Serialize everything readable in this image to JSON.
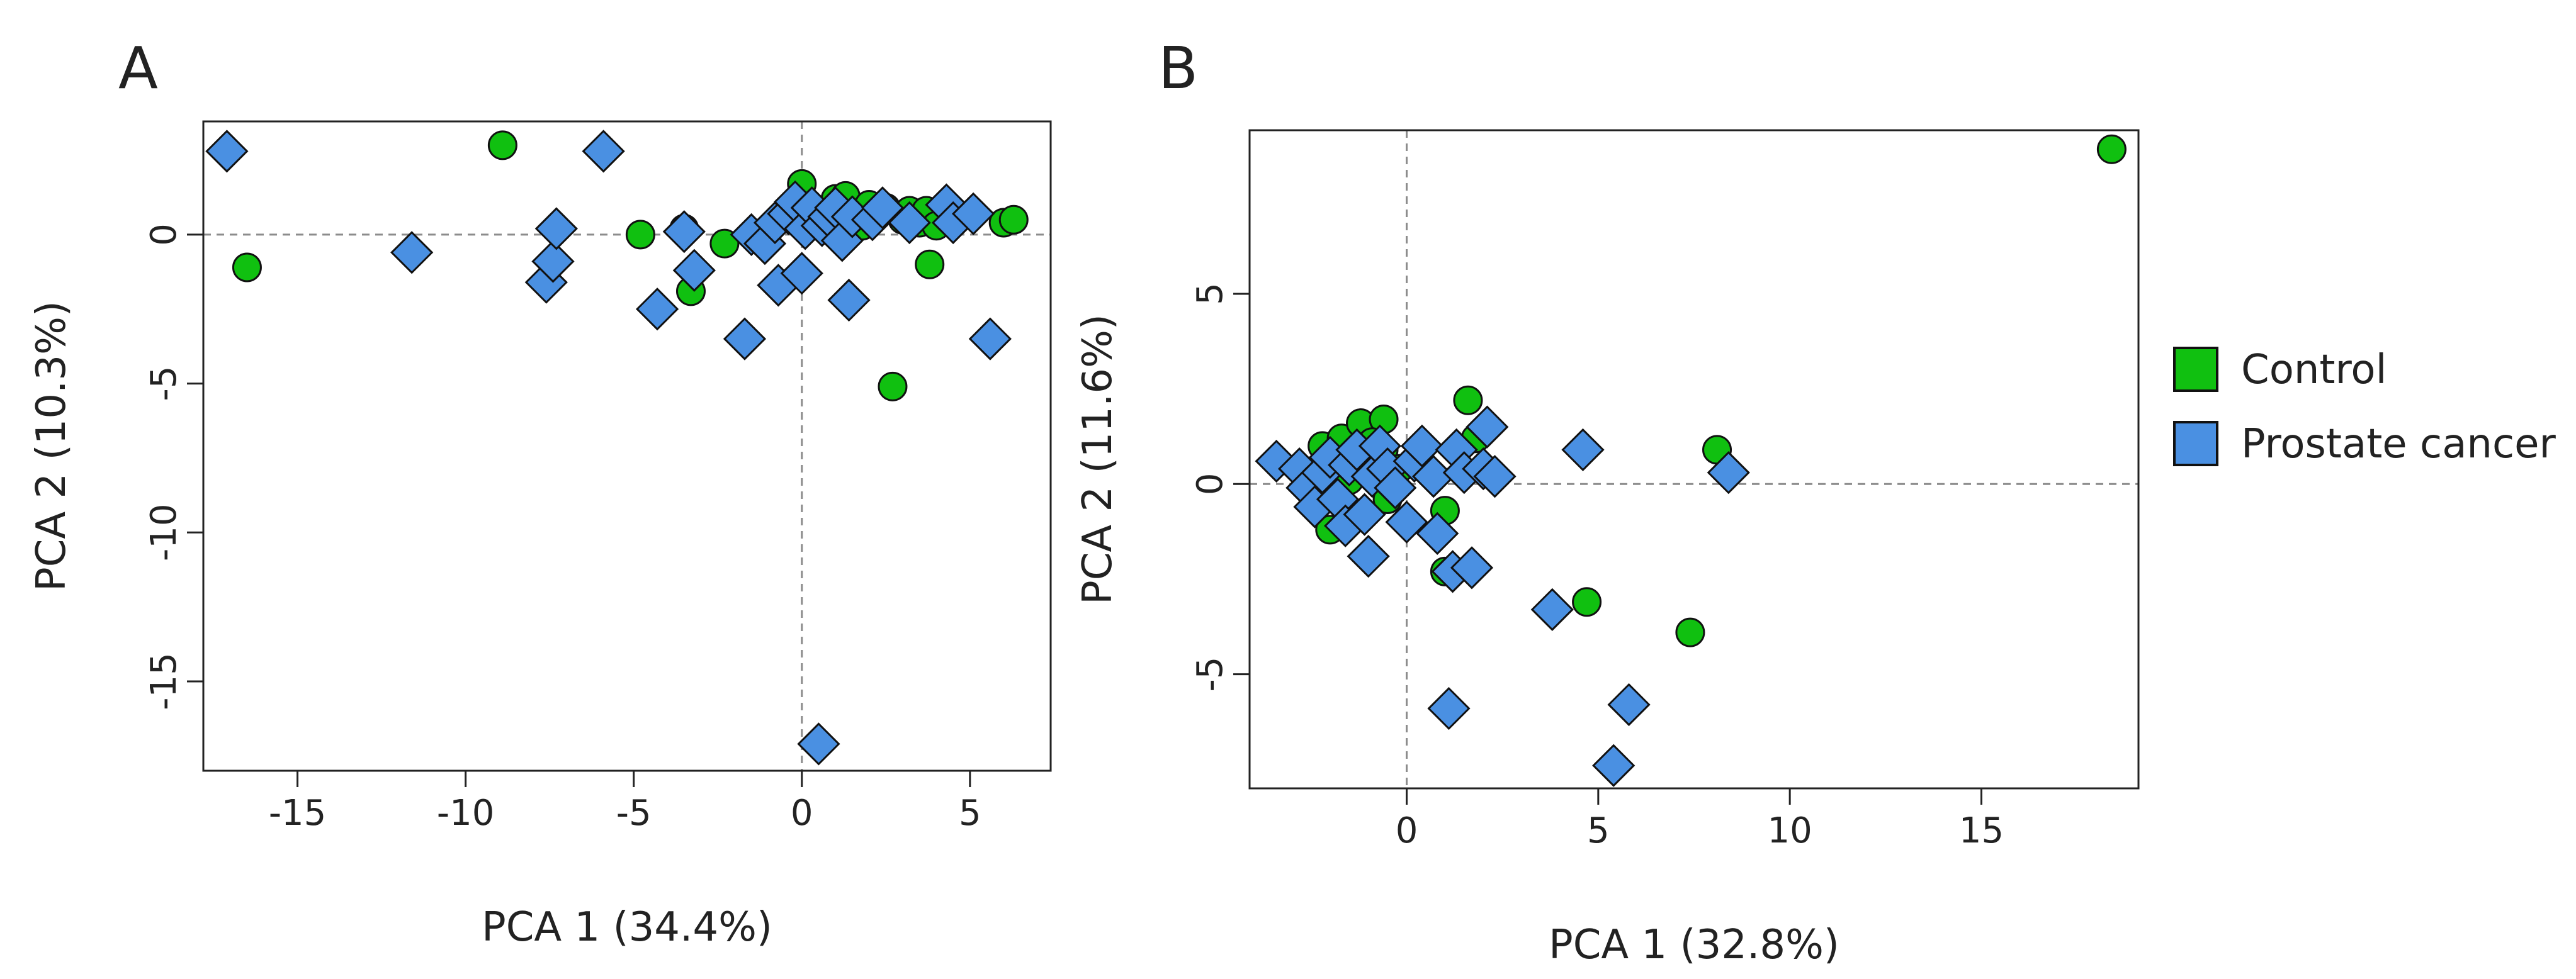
{
  "colors": {
    "control": "#10c010",
    "cancer": "#4a90e2",
    "stroke": "#111111",
    "axis": "#222222",
    "refline": "#8c8c8c"
  },
  "legend": {
    "items": [
      {
        "key": "control",
        "label": "Control"
      },
      {
        "key": "cancer",
        "label": "Prostate cancer"
      }
    ]
  },
  "chart_data": [
    {
      "type": "scatter",
      "panel_label": "A",
      "xlabel": "PCA 1 (34.4%)",
      "ylabel": "PCA 2 (10.3%)",
      "xlim": [
        -17.8,
        7.4
      ],
      "ylim": [
        -18.0,
        3.8
      ],
      "xticks": [
        -15,
        -10,
        -5,
        0,
        5
      ],
      "xtick_labels": [
        "-15",
        "-10",
        "-5",
        "0",
        "5"
      ],
      "yticks": [
        0,
        -5,
        -10,
        -15
      ],
      "ytick_labels": [
        "0",
        "-5",
        "-10",
        "-15"
      ],
      "reference_lines": {
        "x": 0,
        "y": 0
      },
      "series": [
        {
          "name": "Control",
          "key": "control",
          "marker": "circle",
          "points": [
            [
              -16.5,
              -1.1
            ],
            [
              -8.9,
              3.0
            ],
            [
              -4.8,
              0.0
            ],
            [
              -3.5,
              0.2
            ],
            [
              -3.3,
              -1.9
            ],
            [
              -2.3,
              -0.3
            ],
            [
              0.0,
              1.7
            ],
            [
              0.7,
              0.5
            ],
            [
              1.0,
              1.2
            ],
            [
              1.3,
              1.3
            ],
            [
              1.8,
              0.3
            ],
            [
              2.0,
              1.0
            ],
            [
              2.2,
              0.6
            ],
            [
              2.5,
              0.9
            ],
            [
              2.7,
              -5.1
            ],
            [
              3.0,
              0.5
            ],
            [
              3.2,
              0.8
            ],
            [
              3.5,
              0.4
            ],
            [
              3.7,
              0.8
            ],
            [
              3.8,
              -1.0
            ],
            [
              4.0,
              0.3
            ],
            [
              4.6,
              0.5
            ],
            [
              6.0,
              0.4
            ],
            [
              6.3,
              0.5
            ]
          ]
        },
        {
          "name": "Prostate cancer",
          "key": "cancer",
          "marker": "diamond",
          "points": [
            [
              -17.1,
              2.8
            ],
            [
              -11.6,
              -0.6
            ],
            [
              -7.6,
              -1.6
            ],
            [
              -7.4,
              -0.9
            ],
            [
              -7.3,
              0.2
            ],
            [
              -5.9,
              2.8
            ],
            [
              -4.3,
              -2.5
            ],
            [
              -3.5,
              0.1
            ],
            [
              -3.2,
              -1.2
            ],
            [
              -1.7,
              -3.5
            ],
            [
              -1.5,
              0.0
            ],
            [
              -1.1,
              -0.3
            ],
            [
              -0.8,
              0.4
            ],
            [
              -0.7,
              -1.7
            ],
            [
              -0.4,
              0.7
            ],
            [
              -0.2,
              1.1
            ],
            [
              0.0,
              -1.3
            ],
            [
              0.1,
              0.2
            ],
            [
              0.3,
              0.9
            ],
            [
              0.5,
              -17.1
            ],
            [
              0.6,
              0.3
            ],
            [
              0.8,
              0.6
            ],
            [
              1.0,
              0.9
            ],
            [
              1.2,
              -0.2
            ],
            [
              1.4,
              -2.2
            ],
            [
              1.5,
              0.6
            ],
            [
              2.1,
              0.5
            ],
            [
              2.4,
              0.9
            ],
            [
              3.2,
              0.4
            ],
            [
              4.3,
              1.0
            ],
            [
              4.5,
              0.4
            ],
            [
              5.1,
              0.7
            ],
            [
              5.6,
              -3.5
            ]
          ]
        }
      ]
    },
    {
      "type": "scatter",
      "panel_label": "B",
      "xlabel": "PCA 1 (32.8%)",
      "ylabel": "PCA 2 (11.6%)",
      "xlim": [
        -4.1,
        19.1
      ],
      "ylim": [
        -8.0,
        9.3
      ],
      "xticks": [
        0,
        5,
        10,
        15
      ],
      "xtick_labels": [
        "0",
        "5",
        "10",
        "15"
      ],
      "yticks": [
        5,
        0,
        -5
      ],
      "ytick_labels": [
        "5",
        "0",
        "-5"
      ],
      "reference_lines": {
        "x": 0,
        "y": 0
      },
      "series": [
        {
          "name": "Control",
          "key": "control",
          "marker": "circle",
          "points": [
            [
              18.4,
              8.8
            ],
            [
              -2.2,
              1.0
            ],
            [
              -1.7,
              1.2
            ],
            [
              -1.2,
              1.6
            ],
            [
              -0.6,
              1.7
            ],
            [
              -1.4,
              0.7
            ],
            [
              -0.9,
              1.1
            ],
            [
              -0.6,
              0.9
            ],
            [
              -1.5,
              0.1
            ],
            [
              -0.5,
              -0.4
            ],
            [
              -2.0,
              -1.2
            ],
            [
              1.0,
              -0.7
            ],
            [
              1.0,
              -2.3
            ],
            [
              1.6,
              2.2
            ],
            [
              1.8,
              1.2
            ],
            [
              4.7,
              -3.1
            ],
            [
              7.4,
              -3.9
            ],
            [
              8.1,
              0.9
            ],
            [
              -0.2,
              0.4
            ]
          ]
        },
        {
          "name": "Prostate cancer",
          "key": "cancer",
          "marker": "diamond",
          "points": [
            [
              -3.4,
              0.6
            ],
            [
              -2.8,
              0.4
            ],
            [
              -2.6,
              -0.1
            ],
            [
              -2.4,
              -0.6
            ],
            [
              -2.2,
              0.3
            ],
            [
              -2.0,
              0.7
            ],
            [
              -1.8,
              -0.4
            ],
            [
              -1.6,
              -1.1
            ],
            [
              -1.5,
              0.5
            ],
            [
              -1.3,
              0.9
            ],
            [
              -1.1,
              -0.8
            ],
            [
              -1.0,
              -1.9
            ],
            [
              -0.9,
              0.2
            ],
            [
              -0.7,
              1.0
            ],
            [
              -0.5,
              0.4
            ],
            [
              -0.3,
              -0.1
            ],
            [
              0.0,
              -1.0
            ],
            [
              0.2,
              0.6
            ],
            [
              0.4,
              1.0
            ],
            [
              0.7,
              0.2
            ],
            [
              0.8,
              -1.3
            ],
            [
              1.2,
              -2.3
            ],
            [
              1.1,
              -5.9
            ],
            [
              1.3,
              0.9
            ],
            [
              1.5,
              0.3
            ],
            [
              1.7,
              -2.2
            ],
            [
              2.0,
              0.4
            ],
            [
              2.1,
              1.5
            ],
            [
              2.3,
              0.2
            ],
            [
              3.8,
              -3.3
            ],
            [
              4.6,
              0.9
            ],
            [
              5.4,
              -7.4
            ],
            [
              5.8,
              -5.8
            ],
            [
              8.4,
              0.3
            ]
          ]
        }
      ]
    }
  ]
}
